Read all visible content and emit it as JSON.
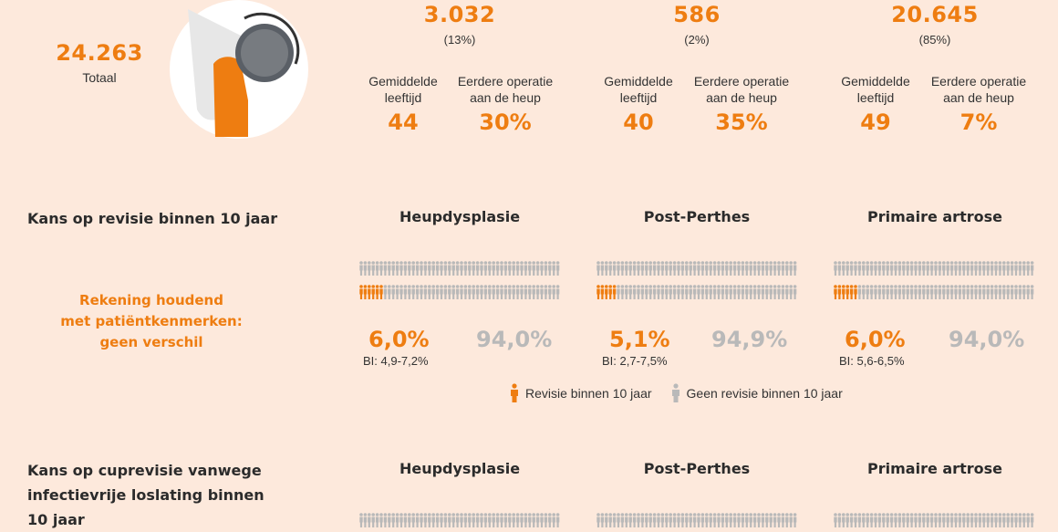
{
  "totals": {
    "total_value": "24.263",
    "total_label": "Totaal",
    "groups": [
      {
        "count": "3.032",
        "share": "(13%)",
        "age_label": "Gemiddelde leeftijd",
        "prior_label": "Eerdere operatie aan de heup",
        "age": "44",
        "prior": "30%"
      },
      {
        "count": "586",
        "share": "(2%)",
        "age_label": "Gemiddelde leeftijd",
        "prior_label": "Eerdere operatie aan de heup",
        "age": "40",
        "prior": "35%"
      },
      {
        "count": "20.645",
        "share": "(85%)",
        "age_label": "Gemiddelde leeftijd",
        "prior_label": "Eerdere operatie aan de heup",
        "age": "49",
        "prior": "7%"
      }
    ]
  },
  "section1": {
    "title": "Kans op revisie binnen 10 jaar",
    "note_lines": [
      "Rekening houdend",
      "met patiëntkenmerken:",
      "geen verschil"
    ],
    "groups": [
      {
        "name": "Heupdysplasie",
        "pct": "6,0%",
        "rest": "94,0%",
        "ci": "BI: 4,9-7,2%"
      },
      {
        "name": "Post-Perthes",
        "pct": "5,1%",
        "rest": "94,9%",
        "ci": "BI: 2,7-7,5%"
      },
      {
        "name": "Primaire artrose",
        "pct": "6,0%",
        "rest": "94,0%",
        "ci": "BI: 5,6-6,5%"
      }
    ]
  },
  "legend": {
    "revision": "Revisie binnen 10 jaar",
    "no_revision": "Geen revisie binnen 10 jaar",
    "colors": {
      "revision": "#ee7d11",
      "no_revision": "#b9b9b9"
    }
  },
  "section2": {
    "title_lines": [
      "Kans op cuprevisie vanwege",
      "infectievrije loslating binnen",
      "10 jaar"
    ],
    "groups": [
      {
        "name": "Heupdysplasie"
      },
      {
        "name": "Post-Perthes"
      },
      {
        "name": "Primaire artrose"
      }
    ]
  },
  "chart_data": {
    "type": "bar",
    "title": "Kans op revisie binnen 10 jaar",
    "categories": [
      "Heupdysplasie",
      "Post-Perthes",
      "Primaire artrose"
    ],
    "series": [
      {
        "name": "Revisie binnen 10 jaar",
        "values": [
          6.0,
          5.1,
          6.0
        ]
      },
      {
        "name": "Geen revisie binnen 10 jaar",
        "values": [
          94.0,
          94.9,
          94.0
        ]
      }
    ],
    "ci": [
      [
        4.9,
        7.2
      ],
      [
        2.7,
        7.5
      ],
      [
        5.6,
        6.5
      ]
    ],
    "icon_rows": 2,
    "icons_per_row": 50,
    "unit": "%"
  }
}
